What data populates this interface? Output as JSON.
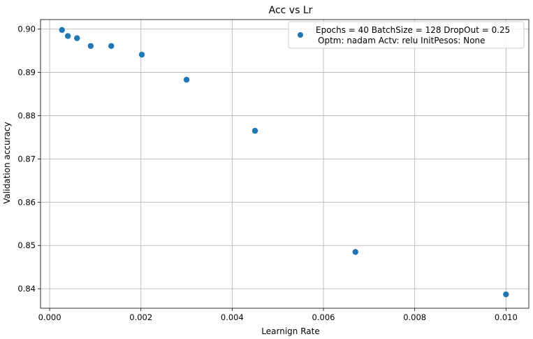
{
  "chart_data": {
    "type": "scatter",
    "title": "Acc vs Lr",
    "xlabel": "Learnign Rate",
    "ylabel": "Validation accuracy",
    "xlim": [
      -0.0002,
      0.0105
    ],
    "ylim": [
      0.8355,
      0.9022
    ],
    "x_ticks": [
      0.0,
      0.002,
      0.004,
      0.006,
      0.008,
      0.01
    ],
    "x_tick_labels": [
      "0.000",
      "0.002",
      "0.004",
      "0.006",
      "0.008",
      "0.010"
    ],
    "y_ticks": [
      0.84,
      0.85,
      0.86,
      0.87,
      0.88,
      0.89,
      0.9
    ],
    "y_tick_labels": [
      "0.84",
      "0.85",
      "0.86",
      "0.87",
      "0.88",
      "0.89",
      "0.90"
    ],
    "grid": true,
    "legend_position": "top-right",
    "series": [
      {
        "name": "Epochs = 40 BatchSize = 128 DropOut = 0.25\nOptm: nadam  Actv: relu   InitPesos: None",
        "name_lines": [
          "Epochs = 40 BatchSize = 128 DropOut = 0.25",
          "Optm: nadam  Actv: relu   InitPesos: None"
        ],
        "color": "#1f77b4",
        "x": [
          0.00027,
          0.0004,
          0.0006,
          0.0009,
          0.00135,
          0.00202,
          0.003,
          0.0045,
          0.0067,
          0.01
        ],
        "y": [
          0.8998,
          0.8984,
          0.8979,
          0.8961,
          0.8961,
          0.8941,
          0.8883,
          0.8765,
          0.8485,
          0.8387
        ]
      }
    ]
  }
}
